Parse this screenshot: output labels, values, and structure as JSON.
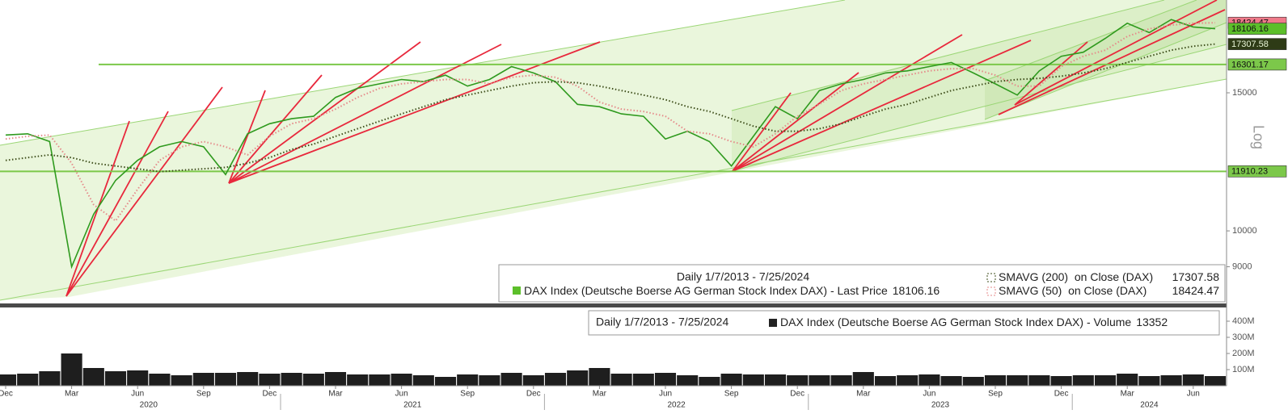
{
  "chart_data": [
    {
      "type": "line",
      "log_scale": true,
      "y_axis_label": "Log",
      "subtitle": "Daily 1/7/2013 - 7/25/2024",
      "categories": [
        "Dec",
        null,
        null,
        "Mar",
        null,
        null,
        "Jun",
        null,
        null,
        "Sep",
        null,
        null,
        "Dec",
        null,
        null,
        "Mar",
        null,
        null,
        "Jun",
        null,
        null,
        "Sep",
        null,
        null,
        "Dec",
        null,
        null,
        "Mar",
        null,
        null,
        "Jun",
        null,
        null,
        "Sep",
        null,
        null,
        "Dec",
        null,
        null,
        "Mar",
        null,
        null,
        "Jun",
        null,
        null,
        "Sep",
        null,
        null,
        "Dec",
        null,
        null,
        "Mar",
        null,
        null,
        "Jun",
        null
      ],
      "x_groups": [
        "2020",
        "2021",
        "2022",
        "2023",
        "2024"
      ],
      "series": [
        {
          "name": "DAX Index (Deutsche Boerse AG German Stock Index DAX) - Last Price",
          "color": "#2f9a1e",
          "label_color": "#5cbf2a",
          "values": [
            13250,
            13300,
            13000,
            9000,
            10500,
            11600,
            12300,
            12800,
            13000,
            12800,
            11800,
            13300,
            13700,
            13900,
            14000,
            14800,
            15200,
            15400,
            15600,
            15500,
            15800,
            15300,
            15600,
            16200,
            15900,
            15500,
            14500,
            14400,
            14100,
            14000,
            13100,
            13400,
            13000,
            12100,
            13200,
            14400,
            13900,
            15100,
            15400,
            15600,
            15900,
            16000,
            16200,
            16400,
            15900,
            15400,
            14900,
            16000,
            16700,
            16900,
            17600,
            18400,
            17900,
            18600,
            18200,
            18106.16
          ]
        },
        {
          "name": "SMAVG (200)  on Close (DAX)",
          "color": "#3f4f1c",
          "label_color": "#2e3b16",
          "style": "dotted",
          "values": [
            12300,
            12400,
            12500,
            12400,
            12200,
            12100,
            12000,
            11900,
            11950,
            12000,
            12050,
            12200,
            12400,
            12700,
            12900,
            13200,
            13500,
            13800,
            14100,
            14400,
            14700,
            14900,
            15100,
            15300,
            15450,
            15500,
            15450,
            15300,
            15100,
            14900,
            14700,
            14400,
            14200,
            13900,
            13600,
            13400,
            13400,
            13500,
            13700,
            14000,
            14300,
            14500,
            14800,
            15100,
            15300,
            15500,
            15600,
            15650,
            15750,
            15900,
            16100,
            16400,
            16700,
            17000,
            17200,
            17307.58
          ]
        },
        {
          "name": "SMAVG (50)  on Close (DAX)",
          "color": "#e58a8a",
          "label_color": "#f07a8a",
          "style": "dotted",
          "values": [
            13100,
            13200,
            13250,
            12200,
            10800,
            10300,
            11300,
            12300,
            12800,
            13000,
            12800,
            12500,
            13200,
            13700,
            13900,
            14300,
            14800,
            15200,
            15400,
            15500,
            15600,
            15600,
            15400,
            15700,
            15800,
            15700,
            15300,
            14600,
            14300,
            14200,
            14000,
            13400,
            13300,
            13000,
            12800,
            13300,
            14000,
            14500,
            15100,
            15400,
            15600,
            15800,
            16000,
            16100,
            16100,
            15800,
            15300,
            15300,
            16200,
            16700,
            17000,
            17700,
            18100,
            18300,
            18400,
            18424.47
          ]
        }
      ],
      "hlines": [
        16301.17,
        11910.23
      ],
      "hline_color": "#7cc84a",
      "ylim": [
        8100,
        19700
      ],
      "yticks": [
        9000,
        10000,
        15000
      ]
    },
    {
      "type": "bar",
      "subtitle": "Daily 1/7/2013 - 7/25/2024",
      "series": [
        {
          "name": "DAX Index (Deutsche Boerse AG German Stock Index DAX) - Volume",
          "color": "#1e1e1e",
          "last": 13352,
          "values": [
            70000000,
            75000000,
            90000000,
            200000000,
            110000000,
            90000000,
            95000000,
            75000000,
            65000000,
            80000000,
            80000000,
            85000000,
            75000000,
            80000000,
            75000000,
            85000000,
            70000000,
            70000000,
            75000000,
            65000000,
            55000000,
            70000000,
            65000000,
            80000000,
            65000000,
            80000000,
            95000000,
            110000000,
            75000000,
            75000000,
            80000000,
            65000000,
            55000000,
            75000000,
            70000000,
            70000000,
            65000000,
            65000000,
            65000000,
            85000000,
            60000000,
            65000000,
            70000000,
            60000000,
            55000000,
            65000000,
            65000000,
            65000000,
            60000000,
            65000000,
            65000000,
            75000000,
            60000000,
            65000000,
            70000000,
            60000000
          ]
        }
      ],
      "ylim": [
        0,
        480000000
      ],
      "yticks": [
        {
          "value": 100000000,
          "label": "100M"
        },
        {
          "value": 200000000,
          "label": "200M"
        },
        {
          "value": 300000000,
          "label": "300M"
        },
        {
          "value": 400000000,
          "label": "400M"
        }
      ]
    }
  ]
}
